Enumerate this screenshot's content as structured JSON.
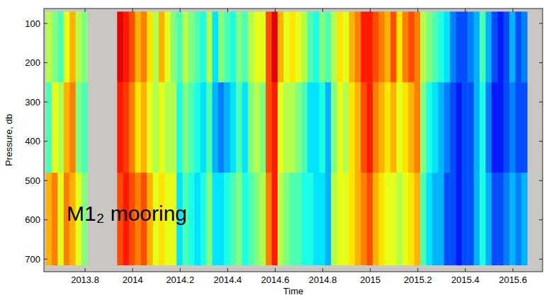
{
  "chart_data": {
    "type": "heatmap",
    "xlabel": "Time",
    "ylabel": "Pressure, db",
    "annotation": "M1₂ mooring",
    "color": "jet",
    "clim": [
      0,
      1
    ],
    "xlim": [
      2013.627,
      2015.725
    ],
    "ylim": [
      732,
      62
    ],
    "xticks": [
      2013.8,
      2014,
      2014.2,
      2014.4,
      2014.6,
      2014.8,
      2015,
      2015.2,
      2015.4,
      2015.6
    ],
    "yticks": [
      100,
      200,
      300,
      400,
      500,
      600,
      700
    ],
    "x": [
      2013.635,
      2013.66,
      2013.685,
      2013.71,
      2013.735,
      2013.76,
      2013.785,
      2013.81,
      2013.835,
      2013.86,
      2013.885,
      2013.91,
      2013.935,
      2013.96,
      2013.985,
      2014.01,
      2014.035,
      2014.06,
      2014.085,
      2014.11,
      2014.135,
      2014.16,
      2014.185,
      2014.21,
      2014.235,
      2014.26,
      2014.285,
      2014.31,
      2014.335,
      2014.36,
      2014.385,
      2014.41,
      2014.435,
      2014.46,
      2014.485,
      2014.51,
      2014.535,
      2014.56,
      2014.585,
      2014.61,
      2014.635,
      2014.66,
      2014.685,
      2014.71,
      2014.735,
      2014.76,
      2014.785,
      2014.81,
      2014.835,
      2014.86,
      2014.885,
      2014.91,
      2014.935,
      2014.96,
      2014.985,
      2015.01,
      2015.035,
      2015.06,
      2015.085,
      2015.11,
      2015.135,
      2015.16,
      2015.185,
      2015.21,
      2015.235,
      2015.26,
      2015.285,
      2015.31,
      2015.335,
      2015.36,
      2015.385,
      2015.41,
      2015.435,
      2015.46,
      2015.485,
      2015.51,
      2015.535,
      2015.56,
      2015.585,
      2015.61,
      2015.635,
      2015.66
    ],
    "y": [
      70,
      250,
      480,
      715
    ],
    "values": [
      [
        0.55,
        0.45,
        0.7
      ],
      [
        0.5,
        0.6,
        0.75
      ],
      [
        0.45,
        0.55,
        0.6
      ],
      [
        0.6,
        0.7,
        0.75
      ],
      [
        0.7,
        0.75,
        0.7
      ],
      [
        0.55,
        0.5,
        0.6
      ],
      [
        0.5,
        0.45,
        0.5
      ],
      [
        null,
        null,
        null
      ],
      [
        null,
        null,
        null
      ],
      [
        null,
        null,
        null
      ],
      [
        null,
        null,
        null
      ],
      [
        null,
        null,
        null
      ],
      [
        0.9,
        0.85,
        0.8
      ],
      [
        0.85,
        0.82,
        0.85
      ],
      [
        0.8,
        0.75,
        0.8
      ],
      [
        0.7,
        0.65,
        0.75
      ],
      [
        0.75,
        0.7,
        0.8
      ],
      [
        0.65,
        0.6,
        0.7
      ],
      [
        0.55,
        0.55,
        0.6
      ],
      [
        0.7,
        0.6,
        0.65
      ],
      [
        0.6,
        0.55,
        0.6
      ],
      [
        0.5,
        0.55,
        0.6
      ],
      [
        0.45,
        0.4,
        0.35
      ],
      [
        0.55,
        0.5,
        0.45
      ],
      [
        0.5,
        0.45,
        0.4
      ],
      [
        0.45,
        0.4,
        0.35
      ],
      [
        0.4,
        0.35,
        0.4
      ],
      [
        0.55,
        0.45,
        0.5
      ],
      [
        0.35,
        0.3,
        0.35
      ],
      [
        0.5,
        0.25,
        0.35
      ],
      [
        0.45,
        0.3,
        0.4
      ],
      [
        0.4,
        0.35,
        0.45
      ],
      [
        0.5,
        0.45,
        0.5
      ],
      [
        0.45,
        0.35,
        0.4
      ],
      [
        0.55,
        0.5,
        0.45
      ],
      [
        0.6,
        0.55,
        0.5
      ],
      [
        0.6,
        0.5,
        0.55
      ],
      [
        0.8,
        0.8,
        0.75
      ],
      [
        0.9,
        0.85,
        0.85
      ],
      [
        0.7,
        0.6,
        0.55
      ],
      [
        0.6,
        0.55,
        0.5
      ],
      [
        0.65,
        0.55,
        0.45
      ],
      [
        0.6,
        0.5,
        0.45
      ],
      [
        0.55,
        0.45,
        0.4
      ],
      [
        0.45,
        0.35,
        0.4
      ],
      [
        0.4,
        0.35,
        0.35
      ],
      [
        0.5,
        0.4,
        0.35
      ],
      [
        0.45,
        0.3,
        0.3
      ],
      [
        0.55,
        0.5,
        0.55
      ],
      [
        0.65,
        0.6,
        0.6
      ],
      [
        0.6,
        0.55,
        0.6
      ],
      [
        0.7,
        0.65,
        0.65
      ],
      [
        0.75,
        0.7,
        0.7
      ],
      [
        0.85,
        0.8,
        0.75
      ],
      [
        0.85,
        0.85,
        0.8
      ],
      [
        0.8,
        0.75,
        0.7
      ],
      [
        0.75,
        0.7,
        0.65
      ],
      [
        0.7,
        0.65,
        0.6
      ],
      [
        0.8,
        0.7,
        0.6
      ],
      [
        0.65,
        0.6,
        0.55
      ],
      [
        0.75,
        0.65,
        0.6
      ],
      [
        0.8,
        0.7,
        0.65
      ],
      [
        0.75,
        0.75,
        0.7
      ],
      [
        0.55,
        0.5,
        0.45
      ],
      [
        0.5,
        0.4,
        0.35
      ],
      [
        0.45,
        0.35,
        0.3
      ],
      [
        0.4,
        0.3,
        0.3
      ],
      [
        0.35,
        0.25,
        0.2
      ],
      [
        0.25,
        0.2,
        0.2
      ],
      [
        0.2,
        0.15,
        0.15
      ],
      [
        0.2,
        0.2,
        0.2
      ],
      [
        0.25,
        0.2,
        0.2
      ],
      [
        0.3,
        0.3,
        0.3
      ],
      [
        0.45,
        0.4,
        0.4
      ],
      [
        0.3,
        0.25,
        0.3
      ],
      [
        0.2,
        0.15,
        0.2
      ],
      [
        0.15,
        0.15,
        0.2
      ],
      [
        0.2,
        0.2,
        0.25
      ],
      [
        0.3,
        0.25,
        0.3
      ],
      [
        0.2,
        0.2,
        0.25
      ],
      [
        0.25,
        0.2,
        0.3
      ]
    ]
  }
}
